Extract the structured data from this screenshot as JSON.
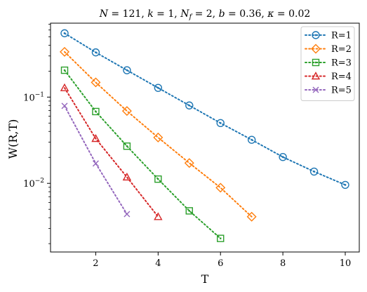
{
  "chart_data": {
    "type": "line",
    "title": "N = 121, k = 1, N_f = 2, b = 0.36, κ = 0.02",
    "title_parts": {
      "N": "N",
      "N_val": " = 121, ",
      "k": "k",
      "k_val": " = 1, ",
      "Nf_N": "N",
      "Nf_sub": "f",
      "Nf_val": " = 2, ",
      "b": "b",
      "b_val": " = 0.36, ",
      "kappa": "κ",
      "kappa_val": " = 0.02"
    },
    "xlabel": "T",
    "ylabel": "W(R,T)",
    "xlim": [
      0.55,
      10.45
    ],
    "ylim": [
      0.0016,
      0.72
    ],
    "yscale": "log",
    "xticks": [
      2,
      4,
      6,
      8,
      10
    ],
    "yticks": [
      0.01,
      0.1
    ],
    "ytick_labels": [
      {
        "base": "10",
        "exp": "−2"
      },
      {
        "base": "10",
        "exp": "−1"
      }
    ],
    "grid": false,
    "legend_position": "top-right",
    "series": [
      {
        "name": "R=1",
        "color": "#1f77b4",
        "marker": "circle",
        "x": [
          1,
          2,
          3,
          4,
          5,
          6,
          7,
          8,
          9,
          10
        ],
        "y": [
          0.55,
          0.33,
          0.205,
          0.128,
          0.08,
          0.05,
          0.032,
          0.0202,
          0.0137,
          0.0096
        ]
      },
      {
        "name": "R=2",
        "color": "#ff7f0e",
        "marker": "diamond",
        "x": [
          1,
          2,
          3,
          4,
          5,
          6,
          7
        ],
        "y": [
          0.335,
          0.148,
          0.069,
          0.034,
          0.0172,
          0.0089,
          0.0041
        ]
      },
      {
        "name": "R=3",
        "color": "#2ca02c",
        "marker": "square",
        "x": [
          1,
          2,
          3,
          4,
          5,
          6
        ],
        "y": [
          0.205,
          0.068,
          0.027,
          0.0112,
          0.0048,
          0.0023
        ]
      },
      {
        "name": "R=4",
        "color": "#d62728",
        "marker": "triangle",
        "x": [
          1,
          2,
          3,
          4
        ],
        "y": [
          0.128,
          0.033,
          0.0118,
          0.0041
        ]
      },
      {
        "name": "R=5",
        "color": "#9467bd",
        "marker": "x",
        "x": [
          1,
          2,
          3
        ],
        "y": [
          0.079,
          0.017,
          0.0044
        ]
      }
    ]
  }
}
